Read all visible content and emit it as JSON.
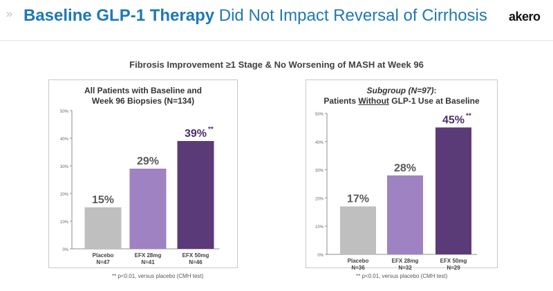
{
  "header": {
    "chevron": "»",
    "title_bold": "Baseline GLP-1 Therapy",
    "title_rest": " Did Not Impact Reversal of Cirrhosis",
    "logo": "akero"
  },
  "subtitle": "Fibrosis Improvement ≥1 Stage & No Worsening of MASH at Week 96",
  "colors": {
    "title_blue": "#1f78b4",
    "placebo": "#bfbfbf",
    "efx28": "#9e82c2",
    "efx50": "#5b3a78",
    "label_emph": "#4b2d6b"
  },
  "chart_data": [
    {
      "type": "bar",
      "title_line1": "All Patients with Baseline and",
      "title_line2": "Week 96 Biopsies (N=134)",
      "categories": [
        "Placebo",
        "EFX 28mg",
        "EFX 50mg"
      ],
      "category_sub": [
        "N=47",
        "N=41",
        "N=46"
      ],
      "values": [
        15,
        29,
        39
      ],
      "value_labels": [
        "15%",
        "29%",
        "39%"
      ],
      "significance": [
        "",
        "",
        "**"
      ],
      "yticks": [
        "0%",
        "10%",
        "20%",
        "30%",
        "40%",
        "50%"
      ],
      "ylim": [
        0,
        50
      ],
      "footnote": "** p<0.01, versus placebo (CMH test)"
    },
    {
      "type": "bar",
      "title_line1_italic": "Subgroup (N=97)",
      "title_line1_rest": ":",
      "title_line2_pre": "Patients ",
      "title_line2_ul": "Without",
      "title_line2_post": " GLP-1 Use at Baseline",
      "categories": [
        "Placebo",
        "EFX 28mg",
        "EFX 50mg"
      ],
      "category_sub": [
        "N=36",
        "N=32",
        "N=29"
      ],
      "values": [
        17,
        28,
        45
      ],
      "value_labels": [
        "17%",
        "28%",
        "45%"
      ],
      "significance": [
        "",
        "",
        "**"
      ],
      "yticks": [
        "0%",
        "10%",
        "20%",
        "30%",
        "40%",
        "50%"
      ],
      "ylim": [
        0,
        50
      ],
      "footnote": "** p<0.01, versus placebo (CMH test)"
    }
  ]
}
